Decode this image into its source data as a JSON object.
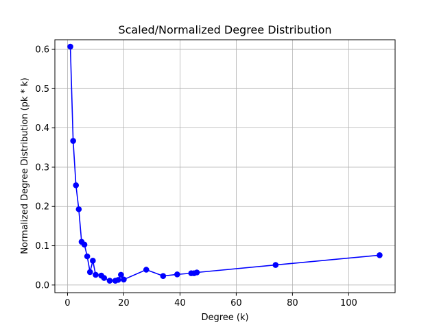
{
  "chart_data": {
    "type": "line",
    "title": "Scaled/Normalized Degree Distribution",
    "xlabel": "Degree (k)",
    "ylabel": "Normalized Degree Distribution (pk * k)",
    "xlim": [
      -4.5,
      116.5
    ],
    "ylim": [
      -0.0195,
      0.6245
    ],
    "xticks": [
      0,
      20,
      40,
      60,
      80,
      100
    ],
    "xtick_labels": [
      "0",
      "20",
      "40",
      "60",
      "80",
      "100"
    ],
    "yticks": [
      0.0,
      0.1,
      0.2,
      0.3,
      0.4,
      0.5,
      0.6
    ],
    "ytick_labels": [
      "0.0",
      "0.1",
      "0.2",
      "0.3",
      "0.4",
      "0.5",
      "0.6"
    ],
    "grid": true,
    "series": [
      {
        "color": "#0000ff",
        "marker": "circle",
        "x": [
          1,
          2,
          3,
          4,
          5,
          6,
          7,
          8,
          9,
          10,
          12,
          13,
          15,
          17,
          18,
          19,
          20,
          28,
          34,
          39,
          44,
          45,
          46,
          74,
          111
        ],
        "y": [
          0.607,
          0.367,
          0.254,
          0.193,
          0.11,
          0.103,
          0.073,
          0.033,
          0.062,
          0.026,
          0.024,
          0.018,
          0.011,
          0.011,
          0.013,
          0.026,
          0.014,
          0.039,
          0.023,
          0.027,
          0.03,
          0.03,
          0.032,
          0.051,
          0.076
        ]
      }
    ]
  }
}
